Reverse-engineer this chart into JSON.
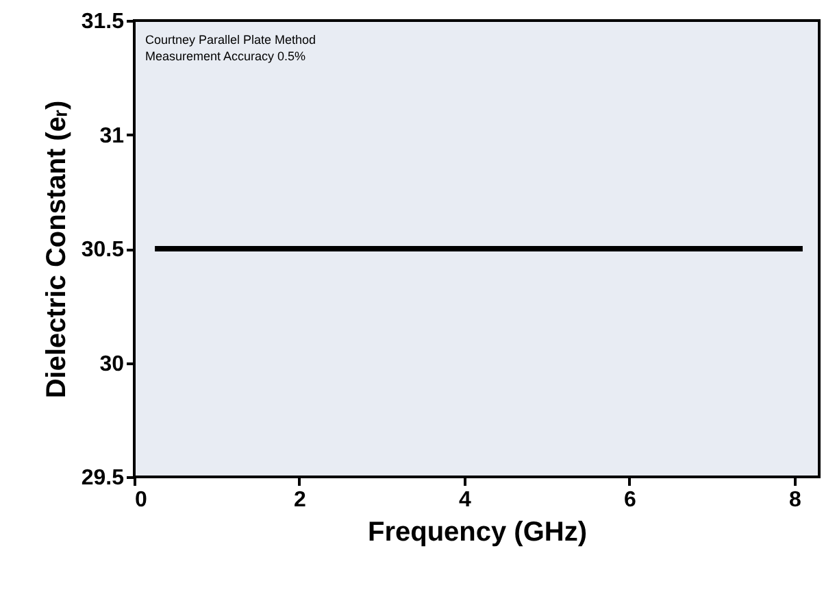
{
  "chart_data": {
    "type": "line",
    "xlabel": "Frequency (GHz)",
    "ylabel": "Dielectric Constant (eᵣ)",
    "annotations": [
      "Courtney Parallel Plate Method",
      "Measurement Accuracy 0.5%"
    ],
    "series": [
      {
        "color": "#000000",
        "x": [
          0.25,
          8.1
        ],
        "values": [
          30.5,
          30.5
        ]
      }
    ],
    "xlim": [
      0,
      8.3
    ],
    "xticks": [
      0,
      2,
      4,
      6,
      8
    ],
    "ylim": [
      29.5,
      31.5
    ],
    "yticks": [
      29.5,
      30,
      30.5,
      31,
      31.5
    ],
    "grid": false,
    "marker": "none",
    "line_style": "solid"
  }
}
